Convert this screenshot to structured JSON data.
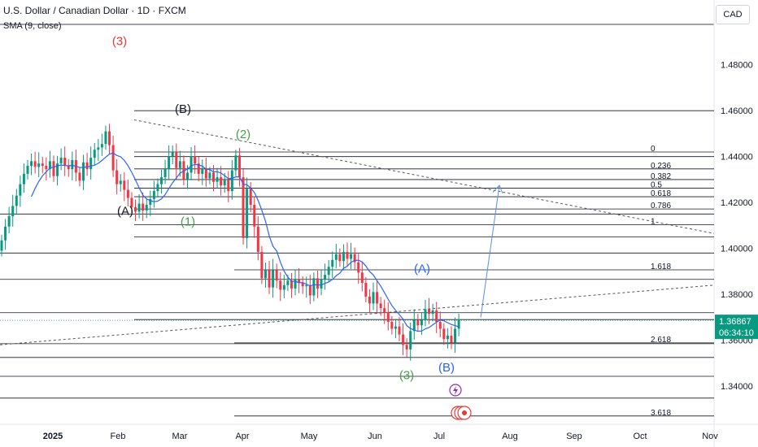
{
  "header": {
    "title": "U.S. Dollar / Canadian Dollar · 1D · FXCM",
    "indicator": "SMA (9, close)",
    "currency": "CAD"
  },
  "colors": {
    "up": "#089981",
    "down": "#f23645",
    "sma": "#2962ff",
    "red_wave": "#e53935",
    "green_wave": "#43a047",
    "blue_wave": "#2962ff",
    "black_wave": "#131722",
    "price_tag": "#089981",
    "event_purple": "#9c27b0",
    "event_red": "#e53935"
  },
  "chart_data": {
    "type": "candlestick",
    "x_axis_labels": [
      "2025",
      "Feb",
      "Mar",
      "Apr",
      "May",
      "Jun",
      "Jul",
      "Aug",
      "Sep",
      "Oct",
      "Nov"
    ],
    "y_axis_labels": [
      "1.48000",
      "1.46000",
      "1.44000",
      "1.42000",
      "1.40000",
      "1.38000",
      "1.36000",
      "1.34000"
    ],
    "y_ticks": [
      1.48,
      1.46,
      1.44,
      1.42,
      1.4,
      1.38,
      1.36,
      1.34
    ],
    "ylim": [
      1.3234,
      1.4976
    ],
    "last_price": "1.36867",
    "countdown": "06:34:10",
    "series": [
      {
        "name": "candles",
        "close": [
          1.4035,
          1.4095,
          1.414,
          1.4185,
          1.423,
          1.428,
          1.4325,
          1.436,
          1.438,
          1.4355,
          1.437,
          1.436,
          1.4345,
          1.438,
          1.4315,
          1.437,
          1.4395,
          1.436,
          1.4345,
          1.4385,
          1.433,
          1.4295,
          1.4375,
          1.4345,
          1.4395,
          1.443,
          1.444,
          1.4455,
          1.451,
          1.445,
          1.434,
          1.428,
          1.4295,
          1.4255,
          1.422,
          1.418,
          1.416,
          1.4195,
          1.4165,
          1.419,
          1.4215,
          1.425,
          1.428,
          1.431,
          1.4345,
          1.44,
          1.442,
          1.435,
          1.438,
          1.43,
          1.433,
          1.44,
          1.437,
          1.4325,
          1.435,
          1.4305,
          1.433,
          1.429,
          1.431,
          1.4275,
          1.43,
          1.425,
          1.434,
          1.4405,
          1.431,
          1.4045,
          1.426,
          1.419,
          1.4095,
          1.3985,
          1.387,
          1.3905,
          1.383,
          1.3905,
          1.386,
          1.382,
          1.384,
          1.386,
          1.3825,
          1.3865,
          1.385,
          1.3835,
          1.384,
          1.3795,
          1.387,
          1.3825,
          1.3865,
          1.3885,
          1.392,
          1.395,
          1.3975,
          1.3945,
          1.3985,
          1.3955,
          1.3975,
          1.394,
          1.3895,
          1.385,
          1.379,
          1.376,
          1.381,
          1.376,
          1.374,
          1.372,
          1.368,
          1.365,
          1.366,
          1.3625,
          1.358,
          1.356,
          1.364,
          1.369,
          1.3665,
          1.369,
          1.3735,
          1.3715,
          1.373,
          1.368,
          1.365,
          1.3605,
          1.362,
          1.359,
          1.365,
          1.3687
        ]
      },
      {
        "name": "SMA (9, close)"
      }
    ],
    "fib_levels": [
      {
        "label": "0",
        "price": 1.442
      },
      {
        "label": "0.236",
        "price": 1.43464
      },
      {
        "label": "0.382",
        "price": 1.43
      },
      {
        "label": "0.5",
        "price": 1.42627
      },
      {
        "label": "0.618",
        "price": 1.42252
      },
      {
        "label": "0.786",
        "price": 1.41717
      },
      {
        "label": "1",
        "price": 1.41036
      },
      {
        "label": "1.618",
        "price": 1.39068
      },
      {
        "label": "2.618",
        "price": 1.35885
      },
      {
        "label": "3.618",
        "price": 1.327
      }
    ],
    "horizontal_levels": [
      1.46,
      1.44,
      1.415,
      1.405,
      1.398,
      1.3865,
      1.372,
      1.369,
      1.3585,
      1.3525,
      1.3443,
      1.3348
    ],
    "annotations": [
      "(3)",
      "(B)",
      "(2)",
      "(A)",
      "(1)",
      "(A)",
      "(3)",
      "(B)"
    ]
  }
}
